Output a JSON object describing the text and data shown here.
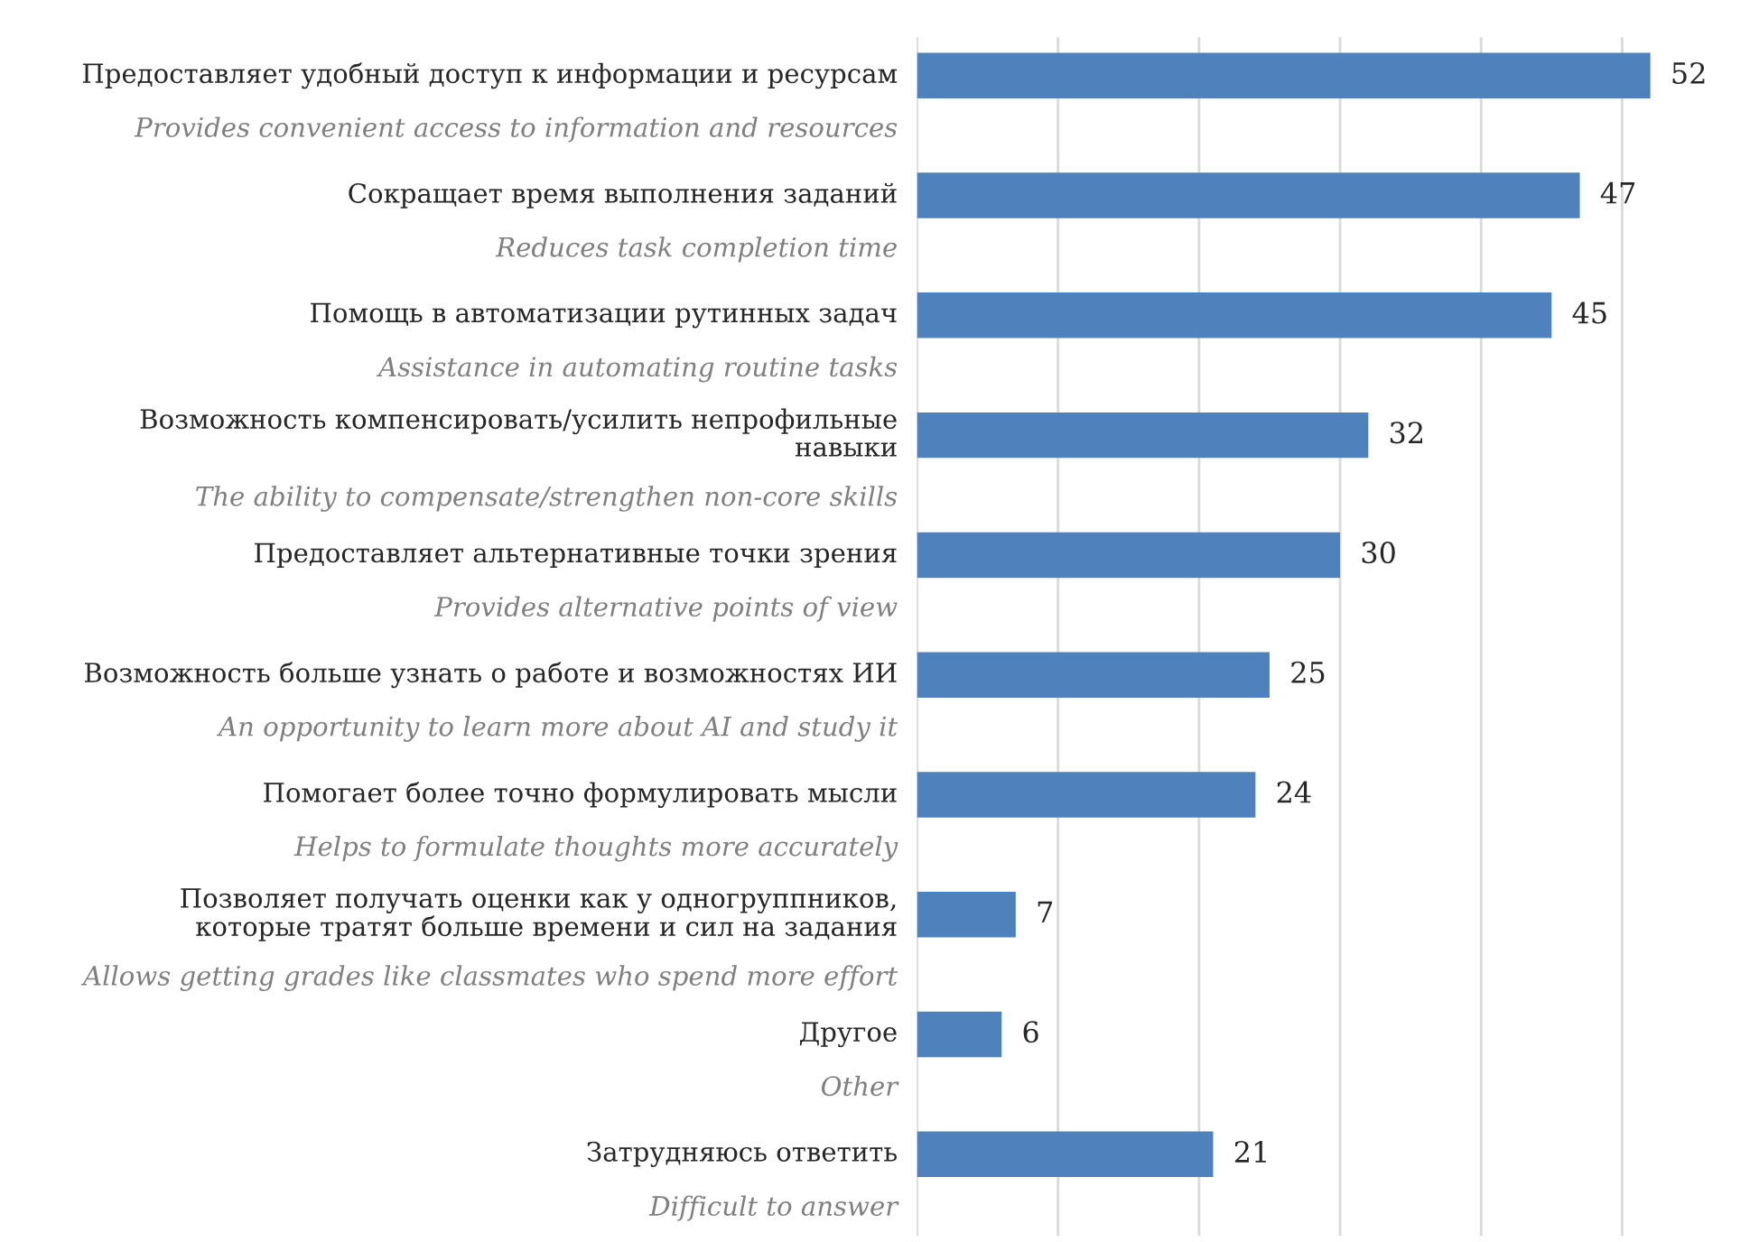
{
  "chart_data": {
    "type": "bar",
    "orientation": "horizontal",
    "categories": [
      "Предоставляет удобный доступ к информации и ресурсам\nProvides convenient access to information and resources",
      "Сокращает время выполнения заданий\nReduces task completion time",
      "Помощь в автоматизации рутинных задач\nAssistance in automating routine tasks",
      "Возможность компенсировать/усилить непрофильные\nнавыки\nThe ability to compensate/strengthen non-core skills",
      "Предоставляет альтернативные точки зрения\nProvides alternative points of view",
      "Возможность больше узнать о работе и возможностях ИИ\nAn opportunity to learn more about AI and study it",
      "Помогает более точно формулировать мысли\nHelps to formulate thoughts more accurately",
      "Позволяет получать оценки как у одногруппников,\nкоторые тратят больше времени и сил на задания\nAllows getting grades like classmates who spend more effort",
      "Другое\nOther",
      "Затрудняюсь ответить\nDifficult to answer"
    ],
    "values": [
      52,
      47,
      45,
      32,
      30,
      25,
      24,
      7,
      6,
      21
    ],
    "color": "#4f81bd",
    "data_labels": true,
    "xticks": [
      {
        "value": 0,
        "label": null
      },
      {
        "value": 10,
        "label": null
      },
      {
        "value": 20,
        "label": null
      },
      {
        "value": 30,
        "label": null
      },
      {
        "value": 40,
        "label": null
      },
      {
        "value": 50,
        "label": null
      }
    ],
    "tick_labels": "y",
    "grid": "x",
    "legend": false
  }
}
